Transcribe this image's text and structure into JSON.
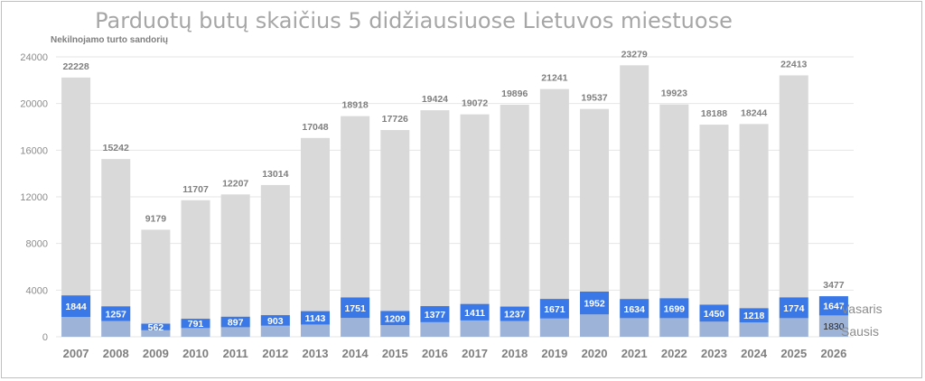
{
  "chart_data": {
    "type": "bar",
    "title": "Parduotų butų skaičius 5 didžiausiuose Lietuvos miestuose",
    "ylabel": "Nekilnojamo turto sandorių",
    "ylim": [
      0,
      24000
    ],
    "yticks": [
      0,
      4000,
      8000,
      12000,
      16000,
      20000,
      24000
    ],
    "grid": true,
    "legend_position": "right",
    "categories": [
      "2007",
      "2008",
      "2009",
      "2010",
      "2011",
      "2012",
      "2013",
      "2014",
      "2015",
      "2016",
      "2017",
      "2018",
      "2019",
      "2020",
      "2021",
      "2022",
      "2023",
      "2024",
      "2025",
      "2026"
    ],
    "series": [
      {
        "name": "Sausis",
        "color": "#9db3d8",
        "values": [
          1700,
          1350,
          560,
          750,
          820,
          950,
          1050,
          1620,
          1000,
          1250,
          1400,
          1350,
          1570,
          1920,
          1600,
          1600,
          1300,
          1230,
          1600,
          1830
        ],
        "label_shown": [
          false,
          false,
          false,
          false,
          false,
          false,
          false,
          false,
          false,
          false,
          false,
          false,
          false,
          false,
          false,
          false,
          false,
          false,
          false,
          true
        ]
      },
      {
        "name": "Vasaris",
        "color": "#3b78e7",
        "values": [
          1844,
          1257,
          562,
          791,
          897,
          903,
          1143,
          1751,
          1209,
          1377,
          1411,
          1237,
          1671,
          1952,
          1634,
          1699,
          1450,
          1218,
          1774,
          1647
        ]
      }
    ],
    "totals": [
      22228,
      15242,
      9179,
      11707,
      12207,
      13014,
      17048,
      18918,
      17726,
      19424,
      19072,
      19896,
      21241,
      19537,
      23279,
      19923,
      18188,
      18244,
      22413,
      3477
    ],
    "total_color": "#d9d9d9",
    "label_text_color": "#262626",
    "gridline_color": "#e6e6e6"
  }
}
